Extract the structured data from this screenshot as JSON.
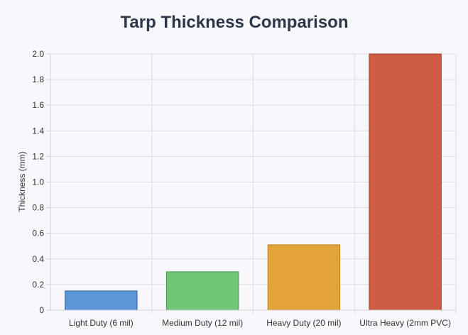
{
  "chart_data": {
    "type": "bar",
    "title": "Tarp Thickness Comparison",
    "xlabel": "",
    "ylabel": "Thickness (mm)",
    "categories": [
      "Light Duty (6 mil)",
      "Medium Duty (12 mil)",
      "Heavy Duty (20 mil)",
      "Ultra Heavy (2mm PVC)"
    ],
    "values": [
      0.15,
      0.3,
      0.51,
      2.0
    ],
    "ylim": [
      0,
      2.0
    ],
    "yticks": [
      "0",
      "0.2",
      "0.4",
      "0.6",
      "0.8",
      "1.0",
      "1.2",
      "1.4",
      "1.6",
      "1.8",
      "2.0"
    ],
    "grid": true,
    "legend": "none",
    "colors": {
      "fill": [
        "#5b96d9",
        "#72c776",
        "#e3a23a",
        "#cf5d45"
      ],
      "border": [
        "#2f5f9a",
        "#4a9a4f",
        "#b8801f",
        "#a43c28"
      ]
    }
  }
}
